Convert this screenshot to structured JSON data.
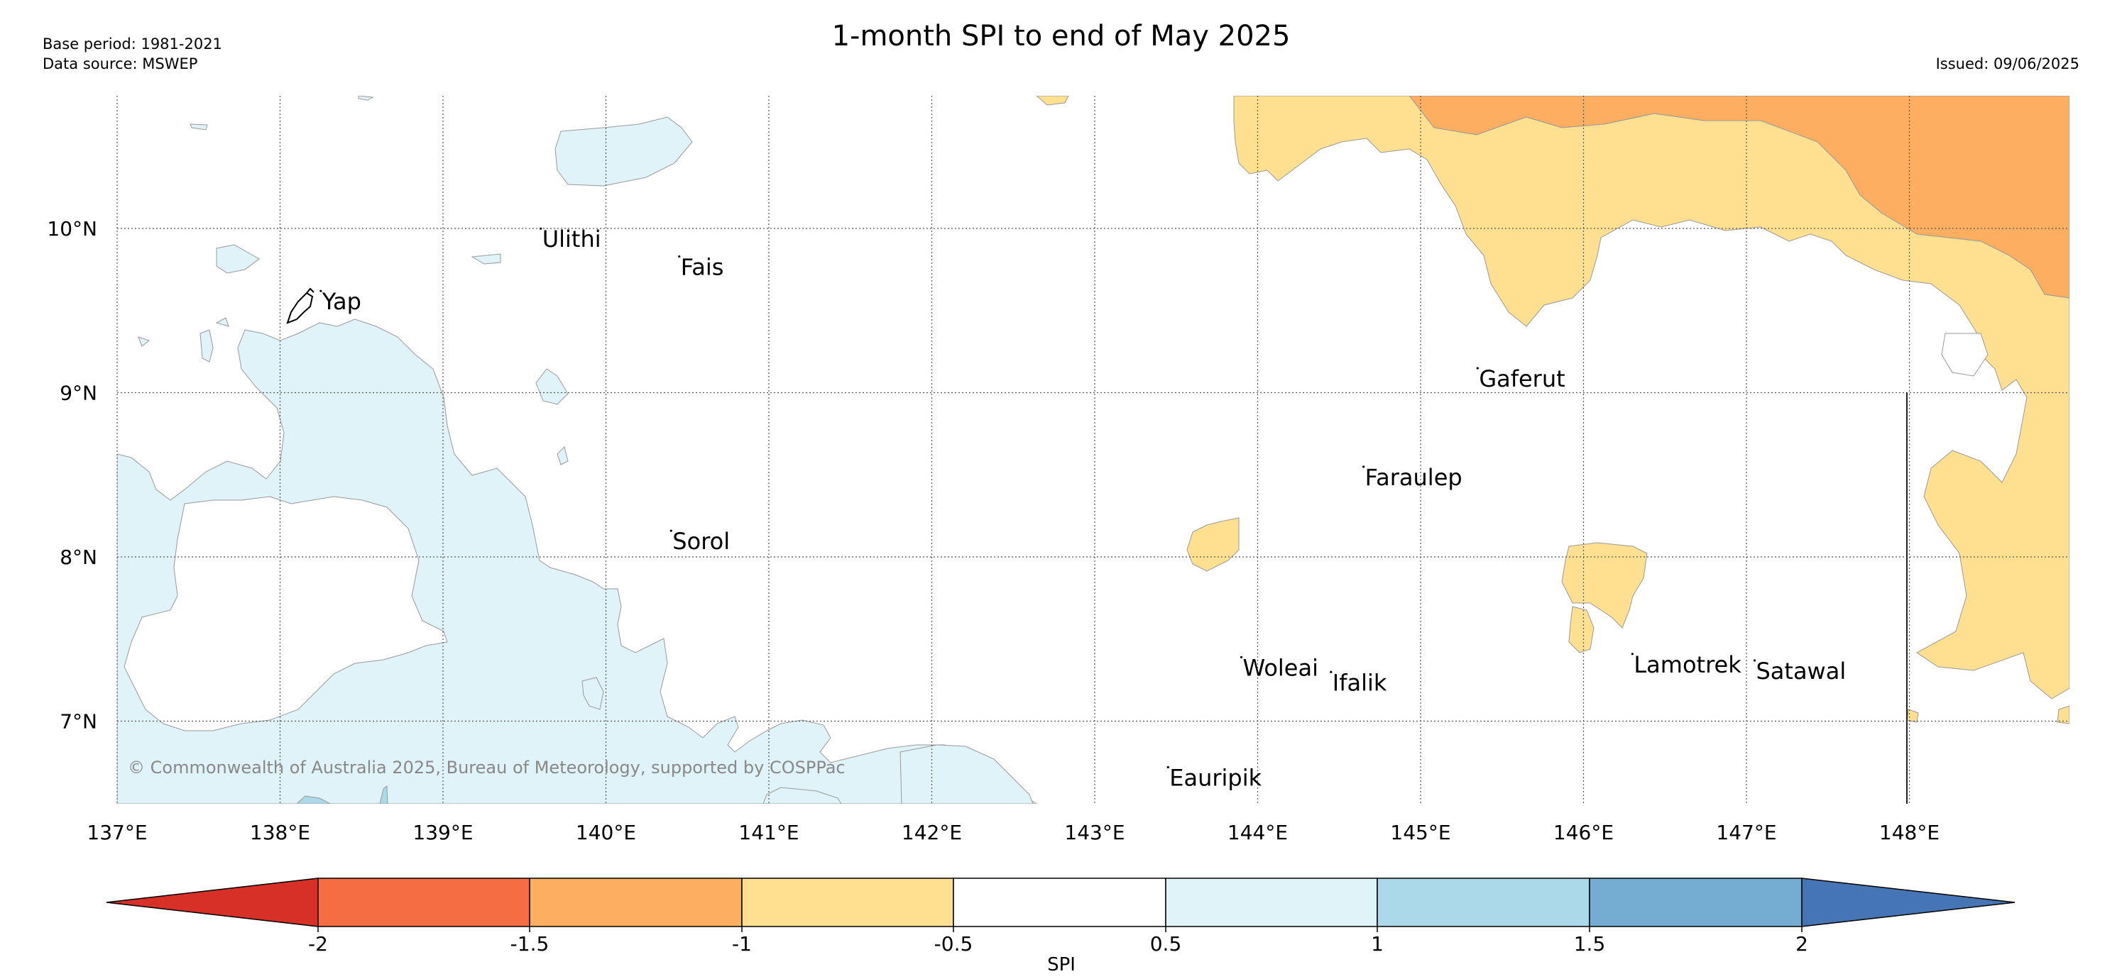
{
  "header": {
    "title": "1-month SPI to end of May 2025",
    "base_period": "Base period: 1981-2021",
    "data_source": "Data source: MSWEP",
    "issued": "Issued: 09/06/2025"
  },
  "map": {
    "lon_ticks": [
      "137°E",
      "138°E",
      "139°E",
      "140°E",
      "141°E",
      "142°E",
      "143°E",
      "144°E",
      "145°E",
      "146°E",
      "147°E",
      "148°E"
    ],
    "lat_ticks": [
      "10°N",
      "9°N",
      "8°N",
      "7°N"
    ],
    "places": [
      {
        "name": "Yap",
        "lon": 138.25,
        "lat": 9.55
      },
      {
        "name": "Ulithi",
        "lon": 139.6,
        "lat": 9.93
      },
      {
        "name": "Fais",
        "lon": 140.45,
        "lat": 9.76
      },
      {
        "name": "Gaferut",
        "lon": 145.35,
        "lat": 9.08
      },
      {
        "name": "Faraulep",
        "lon": 144.65,
        "lat": 8.48
      },
      {
        "name": "Sorol",
        "lon": 140.4,
        "lat": 8.09
      },
      {
        "name": "Woleai",
        "lon": 143.9,
        "lat": 7.32
      },
      {
        "name": "Ifalik",
        "lon": 144.45,
        "lat": 7.23
      },
      {
        "name": "Lamotrek",
        "lon": 146.3,
        "lat": 7.34
      },
      {
        "name": "Satawal",
        "lon": 147.05,
        "lat": 7.3
      },
      {
        "name": "Eauripik",
        "lon": 143.45,
        "lat": 6.65
      }
    ],
    "copyright": "© Commonwealth of Australia 2025, Bureau of Meteorology, supported by COSPPac"
  },
  "colorbar": {
    "label": "SPI",
    "ticks": [
      "-2",
      "-1.5",
      "-1",
      "-0.5",
      "0.5",
      "1",
      "1.5",
      "2"
    ],
    "colors": [
      "#d73027",
      "#f46d43",
      "#fdae61",
      "#fee090",
      "#ffffff",
      "#e0f3f8",
      "#abd9e9",
      "#74add1",
      "#4575b4"
    ]
  }
}
